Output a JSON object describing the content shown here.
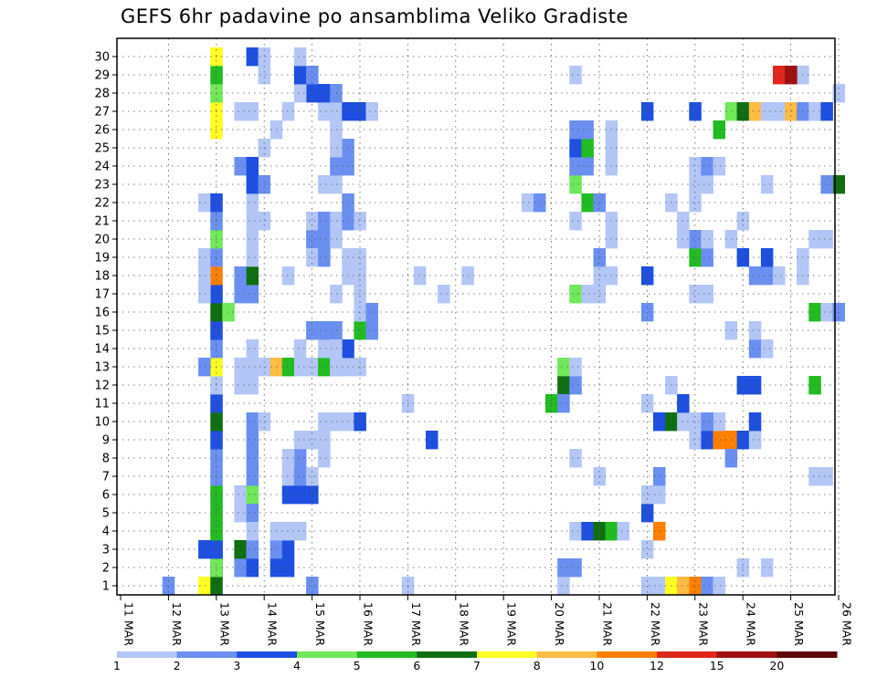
{
  "chart_data": {
    "type": "heatmap",
    "title": "GEFS 6hr padavine po ansamblima Veliko Gradiste",
    "x_tick_labels": [
      "11 MAR",
      "12 MAR",
      "13 MAR",
      "14 MAR",
      "15 MAR",
      "16 MAR",
      "17 MAR",
      "18 MAR",
      "19 MAR",
      "20 MAR",
      "21 MAR",
      "22 MAR",
      "23 MAR",
      "24 MAR",
      "25 MAR",
      "26 MAR"
    ],
    "y_tick_labels": [
      "1",
      "2",
      "3",
      "4",
      "5",
      "6",
      "7",
      "8",
      "9",
      "10",
      "11",
      "12",
      "13",
      "14",
      "15",
      "16",
      "17",
      "18",
      "19",
      "20",
      "21",
      "22",
      "23",
      "24",
      "25",
      "26",
      "27",
      "28",
      "29",
      "30"
    ],
    "x_unit": "6-hour step from 11 MAR 00Z",
    "y_range": [
      0,
      30
    ],
    "grid": "dotted",
    "colorbar_labels": [
      "1",
      "2",
      "3",
      "4",
      "5",
      "6",
      "7",
      "8",
      "10",
      "12",
      "15",
      "20"
    ],
    "colorbar_colors": [
      "#b3c6f5",
      "#6a8ff0",
      "#1f4fe0",
      "#70e85a",
      "#22bb22",
      "#0f6e12",
      "#ffff22",
      "#ffbb44",
      "#ff7f00",
      "#e0261a",
      "#9e1010",
      "#5c0808"
    ],
    "cells": [
      [
        7,
        0,
        7
      ],
      [
        8,
        0,
        6
      ],
      [
        16,
        0,
        2
      ],
      [
        24,
        0,
        1
      ],
      [
        37,
        0,
        1
      ],
      [
        45,
        0,
        1
      ],
      [
        46,
        0,
        7
      ],
      [
        47,
        0,
        8
      ],
      [
        48,
        0,
        9
      ],
      [
        49,
        0,
        2
      ],
      [
        44,
        0,
        1
      ],
      [
        4,
        0,
        2
      ],
      [
        8,
        1,
        3
      ],
      [
        8,
        2,
        3
      ],
      [
        7,
        2,
        3
      ],
      [
        8,
        1,
        4
      ],
      [
        8,
        2,
        3
      ],
      [
        8,
        3,
        5
      ],
      [
        8,
        4,
        5
      ],
      [
        8,
        5,
        5
      ],
      [
        8,
        6,
        2
      ],
      [
        8,
        7,
        2
      ],
      [
        8,
        8,
        3
      ],
      [
        8,
        9,
        6
      ],
      [
        8,
        10,
        3
      ],
      [
        8,
        11,
        1
      ],
      [
        8,
        12,
        7
      ],
      [
        7,
        12,
        2
      ],
      [
        8,
        13,
        2
      ],
      [
        8,
        14,
        3
      ],
      [
        8,
        15,
        6
      ],
      [
        8,
        16,
        3
      ],
      [
        8,
        17,
        9
      ],
      [
        7,
        17,
        1
      ],
      [
        7,
        16,
        1
      ],
      [
        7,
        18,
        1
      ],
      [
        8,
        18,
        2
      ],
      [
        8,
        19,
        4
      ],
      [
        8,
        20,
        2
      ],
      [
        7,
        21,
        1
      ],
      [
        8,
        21,
        3
      ],
      [
        8,
        25,
        7
      ],
      [
        8,
        26,
        7
      ],
      [
        8,
        27,
        4
      ],
      [
        8,
        28,
        5
      ],
      [
        8,
        29,
        7
      ],
      [
        9,
        15,
        4
      ],
      [
        10,
        1,
        2
      ],
      [
        11,
        1,
        3
      ],
      [
        10,
        2,
        6
      ],
      [
        11,
        2,
        2
      ],
      [
        10,
        5,
        1
      ],
      [
        11,
        5,
        4
      ],
      [
        10,
        4,
        1
      ],
      [
        11,
        4,
        2
      ],
      [
        11,
        3,
        1
      ],
      [
        11,
        6,
        2
      ],
      [
        11,
        7,
        2
      ],
      [
        11,
        8,
        2
      ],
      [
        11,
        9,
        2
      ],
      [
        12,
        9,
        1
      ],
      [
        10,
        11,
        1
      ],
      [
        11,
        11,
        1
      ],
      [
        10,
        12,
        1
      ],
      [
        11,
        12,
        1
      ],
      [
        12,
        12,
        1
      ],
      [
        11,
        13,
        1
      ],
      [
        10,
        16,
        2
      ],
      [
        11,
        16,
        2
      ],
      [
        10,
        17,
        2
      ],
      [
        11,
        17,
        6
      ],
      [
        11,
        18,
        1
      ],
      [
        11,
        19,
        1
      ],
      [
        11,
        20,
        1
      ],
      [
        11,
        21,
        1
      ],
      [
        11,
        22,
        3
      ],
      [
        12,
        22,
        2
      ],
      [
        10,
        23,
        2
      ],
      [
        11,
        23,
        3
      ],
      [
        11,
        29,
        3
      ],
      [
        12,
        29,
        1
      ],
      [
        11,
        26,
        1
      ],
      [
        12,
        20,
        1
      ],
      [
        14,
        17,
        1
      ],
      [
        13,
        12,
        8
      ],
      [
        14,
        12,
        5
      ],
      [
        15,
        12,
        1
      ],
      [
        16,
        12,
        1
      ],
      [
        17,
        12,
        5
      ],
      [
        18,
        12,
        1
      ],
      [
        19,
        12,
        1
      ],
      [
        20,
        12,
        1
      ],
      [
        17,
        13,
        1
      ],
      [
        15,
        13,
        1
      ],
      [
        16,
        14,
        2
      ],
      [
        17,
        14,
        2
      ],
      [
        18,
        14,
        2
      ],
      [
        19,
        13,
        3
      ],
      [
        18,
        13,
        1
      ],
      [
        20,
        14,
        5
      ],
      [
        21,
        14,
        2
      ],
      [
        20,
        15,
        1
      ],
      [
        21,
        15,
        2
      ],
      [
        13,
        1,
        3
      ],
      [
        14,
        1,
        3
      ],
      [
        13,
        2,
        2
      ],
      [
        14,
        2,
        3
      ],
      [
        13,
        3,
        1
      ],
      [
        14,
        3,
        1
      ],
      [
        15,
        3,
        1
      ],
      [
        14,
        5,
        3
      ],
      [
        15,
        5,
        3
      ],
      [
        16,
        5,
        3
      ],
      [
        14,
        6,
        1
      ],
      [
        15,
        6,
        2
      ],
      [
        16,
        6,
        1
      ],
      [
        15,
        7,
        2
      ],
      [
        15,
        8,
        1
      ],
      [
        16,
        8,
        1
      ],
      [
        17,
        8,
        1
      ],
      [
        17,
        9,
        1
      ],
      [
        18,
        9,
        1
      ],
      [
        19,
        9,
        1
      ],
      [
        20,
        9,
        3
      ],
      [
        17,
        7,
        1
      ],
      [
        14,
        7,
        1
      ],
      [
        16,
        19,
        2
      ],
      [
        17,
        19,
        2
      ],
      [
        18,
        19,
        1
      ],
      [
        16,
        18,
        1
      ],
      [
        17,
        18,
        2
      ],
      [
        16,
        20,
        1
      ],
      [
        17,
        20,
        2
      ],
      [
        18,
        20,
        1
      ],
      [
        19,
        20,
        2
      ],
      [
        20,
        20,
        1
      ],
      [
        19,
        18,
        1
      ],
      [
        20,
        18,
        1
      ],
      [
        19,
        17,
        1
      ],
      [
        20,
        17,
        1
      ],
      [
        20,
        16,
        1
      ],
      [
        18,
        16,
        1
      ],
      [
        18,
        12,
        1
      ],
      [
        19,
        21,
        2
      ],
      [
        17,
        22,
        1
      ],
      [
        18,
        22,
        1
      ],
      [
        19,
        23,
        2
      ],
      [
        18,
        23,
        2
      ],
      [
        19,
        24,
        2
      ],
      [
        18,
        24,
        1
      ],
      [
        18,
        25,
        1
      ],
      [
        18,
        26,
        1
      ],
      [
        19,
        26,
        3
      ],
      [
        20,
        26,
        3
      ],
      [
        21,
        26,
        1
      ],
      [
        17,
        26,
        1
      ],
      [
        16,
        27,
        3
      ],
      [
        17,
        27,
        3
      ],
      [
        18,
        27,
        2
      ],
      [
        15,
        27,
        1
      ],
      [
        15,
        28,
        3
      ],
      [
        16,
        28,
        2
      ],
      [
        15,
        29,
        1
      ],
      [
        12,
        24,
        1
      ],
      [
        13,
        25,
        1
      ],
      [
        14,
        26,
        1
      ],
      [
        12,
        28,
        1
      ],
      [
        10,
        26,
        1
      ],
      [
        25,
        17,
        1
      ],
      [
        27,
        16,
        1
      ],
      [
        29,
        17,
        1
      ],
      [
        26,
        8,
        3
      ],
      [
        24,
        10,
        1
      ],
      [
        37,
        1,
        2
      ],
      [
        38,
        1,
        2
      ],
      [
        38,
        3,
        1
      ],
      [
        39,
        3,
        3
      ],
      [
        40,
        3,
        6
      ],
      [
        41,
        3,
        5
      ],
      [
        42,
        3,
        1
      ],
      [
        38,
        7,
        1
      ],
      [
        40,
        6,
        1
      ],
      [
        37,
        11,
        6
      ],
      [
        38,
        11,
        2
      ],
      [
        37,
        12,
        4
      ],
      [
        38,
        12,
        1
      ],
      [
        36,
        10,
        5
      ],
      [
        37,
        10,
        2
      ],
      [
        38,
        16,
        4
      ],
      [
        39,
        16,
        1
      ],
      [
        40,
        16,
        1
      ],
      [
        40,
        17,
        1
      ],
      [
        40,
        18,
        2
      ],
      [
        41,
        17,
        1
      ],
      [
        38,
        20,
        1
      ],
      [
        39,
        21,
        5
      ],
      [
        40,
        21,
        2
      ],
      [
        34,
        21,
        1
      ],
      [
        35,
        21,
        2
      ],
      [
        38,
        22,
        4
      ],
      [
        38,
        23,
        2
      ],
      [
        39,
        23,
        2
      ],
      [
        38,
        24,
        3
      ],
      [
        39,
        24,
        5
      ],
      [
        38,
        25,
        2
      ],
      [
        38,
        28,
        1
      ],
      [
        41,
        19,
        1
      ],
      [
        41,
        20,
        1
      ],
      [
        41,
        23,
        1
      ],
      [
        41,
        24,
        1
      ],
      [
        41,
        25,
        1
      ],
      [
        39,
        25,
        2
      ],
      [
        44,
        2,
        1
      ],
      [
        45,
        3,
        9
      ],
      [
        44,
        4,
        3
      ],
      [
        44,
        5,
        1
      ],
      [
        45,
        5,
        1
      ],
      [
        45,
        6,
        2
      ],
      [
        44,
        15,
        2
      ],
      [
        44,
        10,
        1
      ],
      [
        45,
        9,
        3
      ],
      [
        46,
        9,
        6
      ],
      [
        47,
        9,
        1
      ],
      [
        47,
        10,
        3
      ],
      [
        46,
        11,
        1
      ],
      [
        44,
        17,
        3
      ],
      [
        44,
        26,
        3
      ],
      [
        48,
        8,
        1
      ],
      [
        49,
        8,
        3
      ],
      [
        50,
        8,
        9
      ],
      [
        51,
        8,
        9
      ],
      [
        52,
        8,
        3
      ],
      [
        53,
        8,
        1
      ],
      [
        51,
        7,
        2
      ],
      [
        50,
        9,
        1
      ],
      [
        48,
        9,
        1
      ],
      [
        49,
        9,
        2
      ],
      [
        53,
        9,
        3
      ],
      [
        48,
        18,
        5
      ],
      [
        49,
        18,
        2
      ],
      [
        48,
        19,
        2
      ],
      [
        49,
        19,
        1
      ],
      [
        47,
        19,
        1
      ],
      [
        47,
        20,
        1
      ],
      [
        46,
        21,
        1
      ],
      [
        48,
        22,
        1
      ],
      [
        48,
        21,
        1
      ],
      [
        49,
        22,
        1
      ],
      [
        48,
        23,
        1
      ],
      [
        49,
        23,
        2
      ],
      [
        50,
        23,
        1
      ],
      [
        48,
        26,
        3
      ],
      [
        50,
        25,
        5
      ],
      [
        51,
        26,
        4
      ],
      [
        52,
        26,
        6
      ],
      [
        53,
        26,
        8
      ],
      [
        54,
        26,
        1
      ],
      [
        55,
        26,
        1
      ],
      [
        56,
        26,
        8
      ],
      [
        57,
        26,
        2
      ],
      [
        58,
        26,
        1
      ],
      [
        59,
        26,
        3
      ],
      [
        60,
        22,
        6
      ],
      [
        59,
        22,
        2
      ],
      [
        58,
        15,
        5
      ],
      [
        59,
        15,
        1
      ],
      [
        57,
        17,
        1
      ],
      [
        57,
        18,
        1
      ],
      [
        58,
        19,
        1
      ],
      [
        59,
        19,
        1
      ],
      [
        60,
        15,
        2
      ],
      [
        60,
        27,
        1
      ],
      [
        57,
        28,
        1
      ],
      [
        53,
        17,
        2
      ],
      [
        54,
        17,
        2
      ],
      [
        55,
        17,
        1
      ],
      [
        53,
        13,
        2
      ],
      [
        54,
        13,
        1
      ],
      [
        53,
        11,
        3
      ],
      [
        52,
        11,
        3
      ],
      [
        54,
        18,
        3
      ],
      [
        52,
        20,
        1
      ],
      [
        53,
        14,
        1
      ],
      [
        58,
        6,
        1
      ],
      [
        59,
        6,
        1
      ],
      [
        58,
        11,
        5
      ],
      [
        51,
        14,
        1
      ],
      [
        51,
        19,
        1
      ],
      [
        52,
        18,
        3
      ],
      [
        55,
        28,
        10
      ],
      [
        56,
        28,
        11
      ],
      [
        54,
        22,
        1
      ],
      [
        48,
        16,
        1
      ],
      [
        49,
        16,
        1
      ],
      [
        52,
        1,
        1
      ],
      [
        54,
        1,
        1
      ],
      [
        50,
        0,
        1
      ]
    ]
  }
}
